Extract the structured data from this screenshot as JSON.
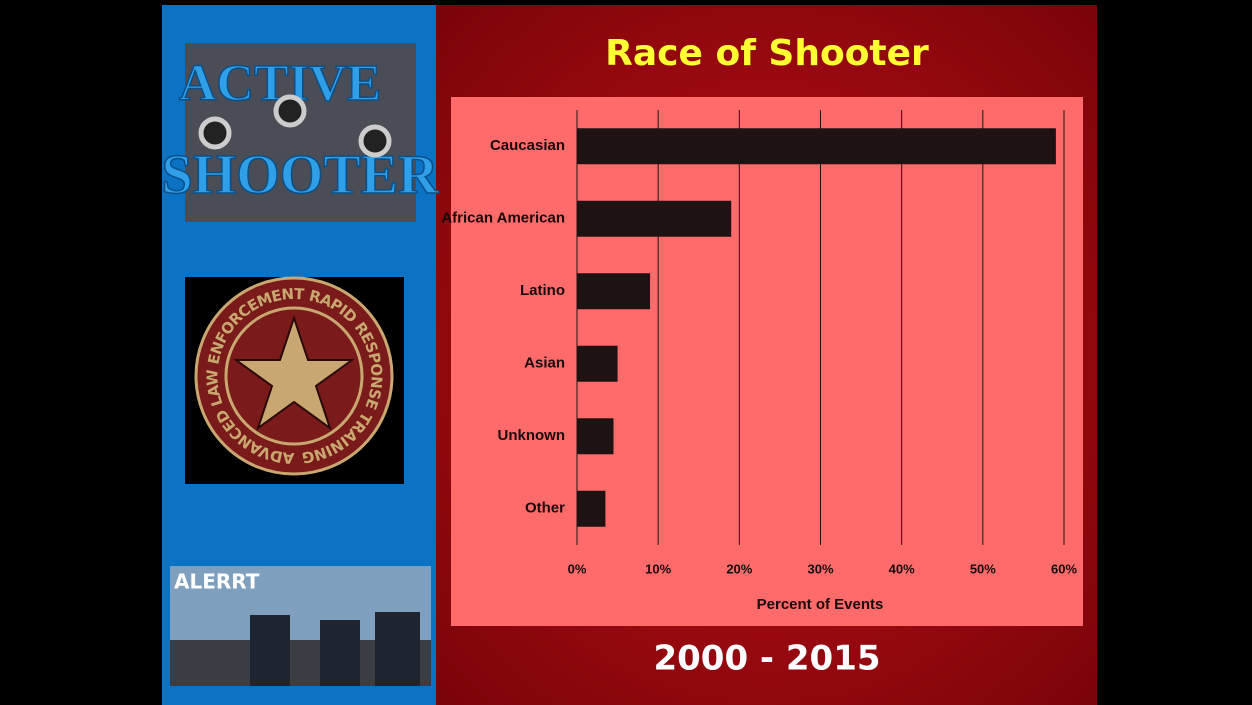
{
  "logos": {
    "active_shooter": [
      "ACTIVE",
      "SHOOTER"
    ],
    "seal": "ADVANCED LAW ENFORCEMENT RAPID RESPONSE TRAINING",
    "photo": "ALERRT"
  },
  "chart_data": {
    "type": "bar",
    "orientation": "horizontal",
    "title": "Race of Shooter",
    "subtitle": "2000 - 2015",
    "categories": [
      "Caucasian",
      "African American",
      "Latino",
      "Asian",
      "Unknown",
      "Other"
    ],
    "values": [
      59,
      19,
      9,
      5,
      4.5,
      3.5
    ],
    "color": "#1e1212",
    "xlabel": "Percent of Events",
    "xlim": [
      0,
      60
    ],
    "xticks": [
      {
        "value": 0,
        "label": "0%"
      },
      {
        "value": 10,
        "label": "10%"
      },
      {
        "value": 20,
        "label": "20%"
      },
      {
        "value": 30,
        "label": "30%"
      },
      {
        "value": 40,
        "label": "40%"
      },
      {
        "value": 50,
        "label": "50%"
      },
      {
        "value": 60,
        "label": "60%"
      }
    ],
    "grid": true
  }
}
